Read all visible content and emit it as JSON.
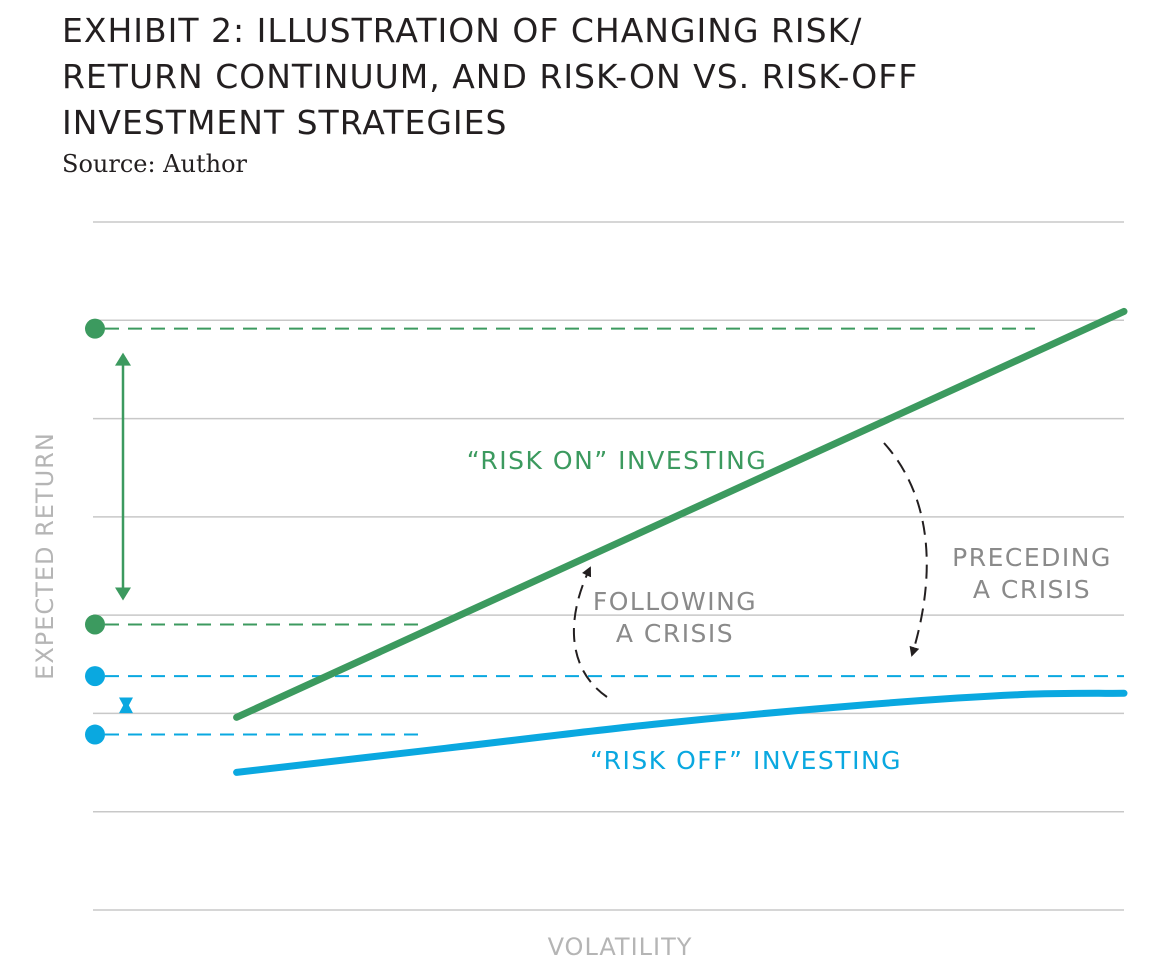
{
  "title_lines": [
    "EXHIBIT 2: ILLUSTRATION OF CHANGING RISK/",
    "RETURN CONTINUUM, AND RISK-ON VS. RISK-OFF",
    "INVESTMENT STRATEGIES"
  ],
  "source": "Source: Author",
  "colors": {
    "risk_on": "#3c9a5f",
    "risk_off": "#0aa8e0",
    "grid": "#c8c8c8",
    "axis_label": "#b5b5b5",
    "annotation": "#8a8a8a",
    "arrow": "#231f20"
  },
  "chart_data": {
    "type": "line",
    "xlabel": "VOLATILITY",
    "ylabel": "EXPECTED RETURN",
    "xlim": [
      0,
      100
    ],
    "ylim": [
      0,
      100
    ],
    "grid": true,
    "tick_labels": false,
    "series": [
      {
        "name": "“RISK ON” INVESTING",
        "color": "#3c9a5f",
        "x": [
          15,
          100
        ],
        "y": [
          28,
          87
        ]
      },
      {
        "name": "“RISK OFF” INVESTING",
        "color": "#0aa8e0",
        "x": [
          15,
          35,
          55,
          75,
          90,
          100
        ],
        "y": [
          20,
          23.5,
          27,
          29.8,
          31.3,
          31.5
        ]
      }
    ],
    "reference_levels": [
      {
        "series": "“RISK ON” INVESTING",
        "level": "high",
        "y": 84.5
      },
      {
        "series": "“RISK ON” INVESTING",
        "level": "low",
        "y": 41.5
      },
      {
        "series": "“RISK OFF” INVESTING",
        "level": "high",
        "y": 34
      },
      {
        "series": "“RISK OFF” INVESTING",
        "level": "low",
        "y": 25.5
      }
    ],
    "annotations": [
      {
        "text_lines": [
          "PRECEDING",
          "A CRISIS"
        ],
        "arrow": "curved-dashed-down"
      },
      {
        "text_lines": [
          "FOLLOWING",
          "A CRISIS"
        ],
        "arrow": "curved-dashed-up"
      }
    ]
  }
}
